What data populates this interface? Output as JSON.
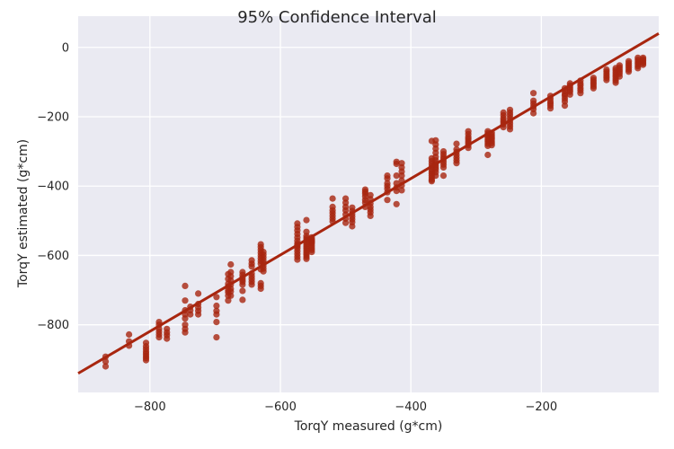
{
  "chart_data": {
    "type": "scatter",
    "title": "95% Confidence Interval",
    "xlabel": "TorqY measured (g*cm)",
    "ylabel": "TorqY estimated (g*cm)",
    "xlim": [
      -910,
      -20
    ],
    "ylim": [
      -995,
      90
    ],
    "xticks": [
      -800,
      -600,
      -400,
      -200
    ],
    "yticks": [
      0,
      -200,
      -400,
      -600,
      -800
    ],
    "xtick_labels": [
      "−800",
      "−600",
      "−400",
      "−200"
    ],
    "ytick_labels": [
      "0",
      "−200",
      "−400",
      "−600",
      "−800"
    ],
    "grid": true,
    "background": "#eaeaf2",
    "grid_color": "#ffffff",
    "point_color": "#a8260f",
    "line_color": "#a8260f",
    "regression_line": {
      "x": [
        -910,
        -20
      ],
      "y": [
        -940,
        40
      ]
    },
    "points": {
      "x": [
        -868,
        -868,
        -868,
        -832,
        -832,
        -832,
        -806,
        -806,
        -806,
        -806,
        -806,
        -806,
        -806,
        -806,
        -786,
        -786,
        -786,
        -786,
        -786,
        -786,
        -774,
        -774,
        -774,
        -774,
        -746,
        -746,
        -746,
        -746,
        -746,
        -746,
        -746,
        -746,
        -738,
        -738,
        -738,
        -726,
        -726,
        -726,
        -726,
        -726,
        -698,
        -698,
        -698,
        -698,
        -698,
        -698,
        -680,
        -680,
        -680,
        -680,
        -680,
        -680,
        -680,
        -680,
        -676,
        -676,
        -676,
        -676,
        -676,
        -676,
        -676,
        -676,
        -658,
        -658,
        -658,
        -658,
        -658,
        -658,
        -658,
        -658,
        -644,
        -644,
        -644,
        -644,
        -644,
        -644,
        -644,
        -644,
        -630,
        -630,
        -630,
        -630,
        -630,
        -630,
        -630,
        -630,
        -630,
        -630,
        -630,
        -630,
        -626,
        -626,
        -626,
        -626,
        -626,
        -626,
        -626,
        -626,
        -574,
        -574,
        -574,
        -574,
        -574,
        -574,
        -574,
        -574,
        -574,
        -574,
        -574,
        -574,
        -574,
        -574,
        -560,
        -560,
        -560,
        -560,
        -560,
        -560,
        -560,
        -560,
        -560,
        -560,
        -560,
        -560,
        -560,
        -560,
        -552,
        -552,
        -552,
        -552,
        -552,
        -552,
        -552,
        -552,
        -552,
        -552,
        -520,
        -520,
        -520,
        -520,
        -520,
        -520,
        -520,
        -500,
        -500,
        -500,
        -500,
        -500,
        -500,
        -500,
        -490,
        -490,
        -490,
        -490,
        -490,
        -490,
        -490,
        -470,
        -470,
        -470,
        -470,
        -470,
        -470,
        -470,
        -462,
        -462,
        -462,
        -462,
        -462,
        -462,
        -462,
        -436,
        -436,
        -436,
        -436,
        -436,
        -436,
        -436,
        -422,
        -422,
        -422,
        -422,
        -422,
        -422,
        -422,
        -414,
        -414,
        -414,
        -414,
        -414,
        -414,
        -414,
        -368,
        -368,
        -368,
        -368,
        -368,
        -368,
        -368,
        -368,
        -368,
        -368,
        -368,
        -368,
        -362,
        -362,
        -362,
        -362,
        -362,
        -362,
        -362,
        -362,
        -362,
        -362,
        -362,
        -362,
        -350,
        -350,
        -350,
        -350,
        -350,
        -350,
        -350,
        -350,
        -330,
        -330,
        -330,
        -330,
        -330,
        -330,
        -330,
        -312,
        -312,
        -312,
        -312,
        -312,
        -312,
        -312,
        -312,
        -282,
        -282,
        -282,
        -282,
        -282,
        -282,
        -282,
        -282,
        -282,
        -276,
        -276,
        -276,
        -276,
        -276,
        -276,
        -276,
        -258,
        -258,
        -258,
        -258,
        -258,
        -258,
        -258,
        -248,
        -248,
        -248,
        -248,
        -248,
        -248,
        -248,
        -248,
        -212,
        -212,
        -212,
        -212,
        -212,
        -212,
        -186,
        -186,
        -186,
        -186,
        -186,
        -186,
        -164,
        -164,
        -164,
        -164,
        -164,
        -164,
        -164,
        -156,
        -156,
        -156,
        -156,
        -156,
        -156,
        -140,
        -140,
        -140,
        -140,
        -140,
        -140,
        -120,
        -120,
        -120,
        -120,
        -120,
        -120,
        -100,
        -100,
        -100,
        -100,
        -100,
        -100,
        -86,
        -86,
        -86,
        -86,
        -86,
        -86,
        -86,
        -86,
        -80,
        -80,
        -80,
        -80,
        -80,
        -80,
        -66,
        -66,
        -66,
        -66,
        -66,
        -66,
        -52,
        -52,
        -52,
        -52,
        -52,
        -52,
        -44,
        -44,
        -44,
        -44,
        -44,
        -44
      ],
      "y": [
        -892,
        -906,
        -920,
        -828,
        -848,
        -860,
        -852,
        -862,
        -870,
        -878,
        -884,
        -890,
        -896,
        -902,
        -792,
        -800,
        -812,
        -820,
        -828,
        -836,
        -812,
        -822,
        -830,
        -840,
        -688,
        -730,
        -758,
        -770,
        -782,
        -800,
        -812,
        -822,
        -748,
        -758,
        -770,
        -710,
        -740,
        -750,
        -760,
        -770,
        -720,
        -745,
        -760,
        -770,
        -792,
        -836,
        -654,
        -668,
        -682,
        -690,
        -700,
        -706,
        -716,
        -730,
        -626,
        -648,
        -660,
        -672,
        -684,
        -696,
        -704,
        -716,
        -648,
        -656,
        -664,
        -670,
        -676,
        -684,
        -702,
        -728,
        -614,
        -624,
        -632,
        -652,
        -660,
        -668,
        -676,
        -684,
        -568,
        -576,
        -584,
        -592,
        -600,
        -608,
        -616,
        -624,
        -640,
        -680,
        -688,
        -696,
        -590,
        -598,
        -606,
        -614,
        -622,
        -630,
        -638,
        -646,
        -508,
        -518,
        -528,
        -538,
        -548,
        -558,
        -566,
        -574,
        -580,
        -588,
        -596,
        -604,
        -612,
        -570,
        -498,
        -532,
        -544,
        -550,
        -556,
        -562,
        -568,
        -574,
        -580,
        -586,
        -592,
        -598,
        -604,
        -610,
        -548,
        -554,
        -560,
        -566,
        -572,
        -578,
        -584,
        -590,
        -556,
        -562,
        -436,
        -460,
        -470,
        -478,
        -486,
        -494,
        -502,
        -436,
        -448,
        -460,
        -470,
        -482,
        -494,
        -506,
        -462,
        -472,
        -480,
        -488,
        -496,
        -504,
        -516,
        -410,
        -416,
        -422,
        -430,
        -440,
        -448,
        -460,
        -426,
        -438,
        -450,
        -460,
        -468,
        -476,
        -486,
        -370,
        -378,
        -392,
        -400,
        -408,
        -418,
        -440,
        -330,
        -336,
        -370,
        -392,
        -404,
        -414,
        -452,
        -334,
        -346,
        -358,
        -370,
        -384,
        -398,
        -412,
        -270,
        -320,
        -328,
        -336,
        -344,
        -352,
        -358,
        -364,
        -370,
        -376,
        -382,
        -386,
        -268,
        -280,
        -292,
        -304,
        -316,
        -326,
        -334,
        -340,
        -346,
        -352,
        -360,
        -370,
        -300,
        -308,
        -316,
        -322,
        -330,
        -338,
        -346,
        -370,
        -278,
        -294,
        -302,
        -310,
        -318,
        -326,
        -334,
        -242,
        -250,
        -258,
        -264,
        -270,
        -276,
        -282,
        -290,
        -242,
        -248,
        -254,
        -260,
        -266,
        -272,
        -278,
        -284,
        -310,
        -246,
        -252,
        -258,
        -264,
        -270,
        -276,
        -282,
        -188,
        -196,
        -204,
        -210,
        -216,
        -222,
        -230,
        -180,
        -188,
        -196,
        -204,
        -212,
        -220,
        -228,
        -236,
        -132,
        -154,
        -162,
        -170,
        -178,
        -190,
        -140,
        -148,
        -156,
        -162,
        -168,
        -176,
        -118,
        -126,
        -134,
        -140,
        -148,
        -156,
        -168,
        -104,
        -110,
        -116,
        -122,
        -128,
        -136,
        -96,
        -104,
        -110,
        -118,
        -124,
        -132,
        -88,
        -94,
        -100,
        -106,
        -112,
        -118,
        -64,
        -70,
        -76,
        -82,
        -88,
        -94,
        -60,
        -66,
        -72,
        -78,
        -84,
        -90,
        -96,
        -102,
        -52,
        -58,
        -64,
        -70,
        -76,
        -84,
        -40,
        -46,
        -52,
        -58,
        -64,
        -70,
        -30,
        -36,
        -42,
        -48,
        -54,
        -60,
        -30,
        -34,
        -38,
        -42,
        -46,
        -50
      ]
    }
  }
}
